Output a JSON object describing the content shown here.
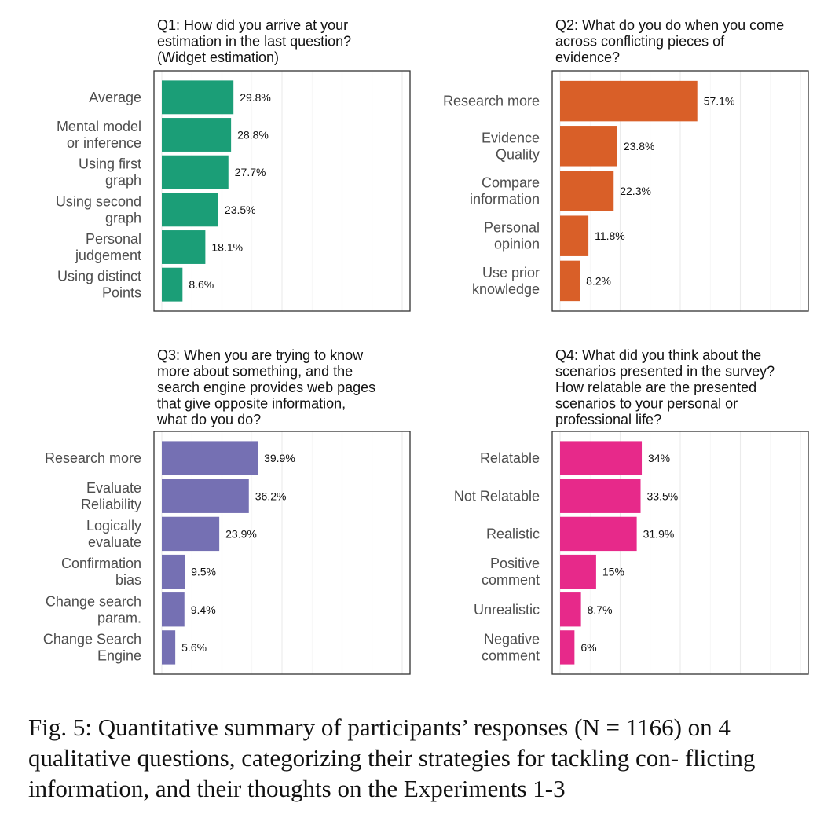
{
  "caption": "Fig. 5: Quantitative summary of participants’ responses (N = 1166) on 4 qualitative questions, categorizing their strategies for tackling con- flicting information, and their thoughts on the Experiments 1-3",
  "chart_data": [
    {
      "type": "bar",
      "orientation": "horizontal",
      "title": "Q1: How did you arrive at your estimation in the last question? (Widget estimation)",
      "title_lines": [
        "Q1: How did you arrive at your",
        "estimation in the last question?",
        "(Widget estimation)"
      ],
      "categories": [
        "Average",
        "Mental model or inference",
        "Using first graph",
        "Using second graph",
        "Personal judgement",
        "Using distinct Points"
      ],
      "category_lines": [
        [
          "Average"
        ],
        [
          "Mental model",
          "or inference"
        ],
        [
          "Using first",
          "graph"
        ],
        [
          "Using second",
          "graph"
        ],
        [
          "Personal",
          "judgement"
        ],
        [
          "Using distinct",
          "Points"
        ]
      ],
      "values": [
        29.8,
        28.8,
        27.7,
        23.5,
        18.1,
        8.6
      ],
      "value_labels": [
        "29.8%",
        "28.8%",
        "27.7%",
        "23.5%",
        "18.1%",
        "8.6%"
      ],
      "color": "#1b9e77",
      "xlim": [
        0,
        100
      ],
      "grid": true
    },
    {
      "type": "bar",
      "orientation": "horizontal",
      "title": "Q2: What do you do when you come across conflicting pieces of evidence?",
      "title_lines": [
        "Q2: What do you do when you come",
        "across conflicting pieces of",
        "evidence?"
      ],
      "categories": [
        "Research more",
        "Evidence Quality",
        "Compare information",
        "Personal opinion",
        "Use prior knowledge"
      ],
      "category_lines": [
        [
          "Research more"
        ],
        [
          "Evidence",
          "Quality"
        ],
        [
          "Compare",
          "information"
        ],
        [
          "Personal",
          "opinion"
        ],
        [
          "Use prior",
          "knowledge"
        ]
      ],
      "values": [
        57.1,
        23.8,
        22.3,
        11.8,
        8.2
      ],
      "value_labels": [
        "57.1%",
        "23.8%",
        "22.3%",
        "11.8%",
        "8.2%"
      ],
      "color": "#d95f28",
      "xlim": [
        0,
        100
      ],
      "grid": true
    },
    {
      "type": "bar",
      "orientation": "horizontal",
      "title": "Q3: When you are trying to know more about something, and the search engine provides web pages that give opposite information, what do you do?",
      "title_lines": [
        "Q3: When you are trying to know",
        "more about something, and the",
        "search engine provides web pages",
        "that give opposite information,",
        "what do you do?"
      ],
      "categories": [
        "Research more",
        "Evaluate Reliability",
        "Logically evaluate",
        "Confirmation bias",
        "Change search param.",
        "Change Search Engine"
      ],
      "category_lines": [
        [
          "Research more"
        ],
        [
          "Evaluate",
          "Reliability"
        ],
        [
          "Logically",
          "evaluate"
        ],
        [
          "Confirmation",
          "bias"
        ],
        [
          "Change search",
          "param."
        ],
        [
          "Change Search",
          "Engine"
        ]
      ],
      "values": [
        39.9,
        36.2,
        23.9,
        9.5,
        9.4,
        5.6
      ],
      "value_labels": [
        "39.9%",
        "36.2%",
        "23.9%",
        "9.5%",
        "9.4%",
        "5.6%"
      ],
      "color": "#7570b3",
      "xlim": [
        0,
        100
      ],
      "grid": true
    },
    {
      "type": "bar",
      "orientation": "horizontal",
      "title": "Q4: What did you think about the scenarios presented in the survey? How relatable are the presented scenarios to your personal or professional life?",
      "title_lines": [
        "Q4: What did you think about the",
        "scenarios presented in the survey?",
        "How relatable are the presented",
        "scenarios to your personal or",
        "professional life?"
      ],
      "categories": [
        "Relatable",
        "Not Relatable",
        "Realistic",
        "Positive comment",
        "Unrealistic",
        "Negative comment"
      ],
      "category_lines": [
        [
          "Relatable"
        ],
        [
          "Not Relatable"
        ],
        [
          "Realistic"
        ],
        [
          "Positive",
          "comment"
        ],
        [
          "Unrealistic"
        ],
        [
          "Negative",
          "comment"
        ]
      ],
      "values": [
        34,
        33.5,
        31.9,
        15,
        8.7,
        6
      ],
      "value_labels": [
        "34%",
        "33.5%",
        "31.9%",
        "15%",
        "8.7%",
        "6%"
      ],
      "color": "#e7298a",
      "xlim": [
        0,
        100
      ],
      "grid": true
    }
  ]
}
